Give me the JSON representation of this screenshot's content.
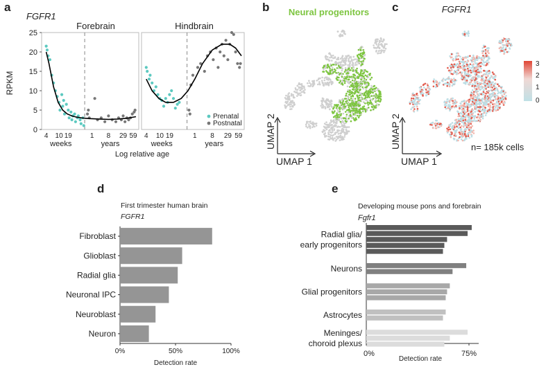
{
  "panels": {
    "a": {
      "letter": "a",
      "gene": "FGFR1",
      "ylabel": "RPKM",
      "xlabel": "Log relative age",
      "legend": [
        "Prenatal",
        "Postnatal"
      ],
      "colors": {
        "prenatal": "#5cc9c0",
        "postnatal": "#777777",
        "curve": "#000000"
      }
    },
    "b": {
      "letter": "b",
      "title": "Neural progenitors",
      "xlabel": "UMAP 1",
      "ylabel": "UMAP 2",
      "color": "#7dc540"
    },
    "c": {
      "letter": "c",
      "title": "FGFR1",
      "xlabel": "UMAP 1",
      "ylabel": "UMAP 2",
      "note": "n= 185k cells",
      "scale_ticks": [
        "3",
        "2",
        "1",
        "0"
      ]
    },
    "d": {
      "letter": "d",
      "title": "First trimester human brain",
      "gene": "FGFR1",
      "xlabel": "Detection rate"
    },
    "e": {
      "letter": "e",
      "title": "Developing mouse pons and forebrain",
      "gene": "Fgfr1",
      "xlabel": "Detection rate"
    }
  },
  "chart_data": [
    {
      "type": "scatter",
      "panel": "a-forebrain",
      "title": "Forebrain",
      "ylim": [
        0,
        25
      ],
      "yticks": [
        0,
        5,
        10,
        15,
        20,
        25
      ],
      "xtick_labels": [
        "4",
        "10",
        "19",
        "1",
        "8",
        "29",
        "59"
      ],
      "xgroup_labels": [
        "weeks",
        "years"
      ],
      "series": [
        {
          "name": "Prenatal",
          "x": [
            0.02,
            0.03,
            0.04,
            0.06,
            0.08,
            0.1,
            0.12,
            0.14,
            0.16,
            0.17,
            0.19,
            0.2,
            0.21,
            0.22,
            0.24,
            0.26,
            0.27,
            0.29,
            0.3,
            0.31,
            0.33,
            0.34,
            0.36,
            0.37,
            0.39,
            0.4,
            0.42,
            0.43
          ],
          "y": [
            21.5,
            20.5,
            19,
            18,
            14,
            12,
            10,
            8.5,
            7,
            5,
            9,
            6,
            7.5,
            4,
            6.5,
            5,
            3,
            4.5,
            2.5,
            3.5,
            4,
            2,
            3,
            3.5,
            2.5,
            1.5,
            3,
            1
          ]
        },
        {
          "name": "Postnatal",
          "x": [
            0.47,
            0.48,
            0.49,
            0.55,
            0.58,
            0.62,
            0.66,
            0.7,
            0.74,
            0.78,
            0.81,
            0.84,
            0.86,
            0.88,
            0.9,
            0.92,
            0.94,
            0.96,
            0.98,
            0.99
          ],
          "y": [
            4,
            5,
            3,
            8,
            2.5,
            3,
            2,
            3.5,
            2.5,
            2,
            3,
            2.5,
            3.5,
            2,
            3,
            2.5,
            3,
            4,
            4.5,
            5
          ]
        }
      ],
      "fit": {
        "x": [
          0.02,
          0.05,
          0.1,
          0.15,
          0.2,
          0.25,
          0.3,
          0.35,
          0.4,
          0.45,
          0.5,
          0.6,
          0.7,
          0.8,
          0.9,
          1.0
        ],
        "y": [
          20,
          17,
          11,
          7,
          5,
          4,
          3.5,
          3.2,
          3,
          2.9,
          2.8,
          2.7,
          2.6,
          2.7,
          2.9,
          3.3
        ]
      }
    },
    {
      "type": "scatter",
      "panel": "a-hindbrain",
      "title": "Hindbrain",
      "ylim": [
        0,
        25
      ],
      "xtick_labels": [
        "4",
        "10",
        "19",
        "1",
        "8",
        "29",
        "59"
      ],
      "xgroup_labels": [
        "weeks",
        "years"
      ],
      "series": [
        {
          "name": "Prenatal",
          "x": [
            0.02,
            0.03,
            0.05,
            0.06,
            0.08,
            0.1,
            0.12,
            0.14,
            0.16,
            0.18,
            0.2,
            0.22,
            0.24,
            0.26,
            0.28,
            0.3,
            0.32,
            0.34,
            0.36
          ],
          "y": [
            16,
            15,
            13,
            14,
            12,
            10,
            11,
            9,
            8,
            7.5,
            6,
            8,
            7,
            9,
            10,
            8,
            5.5,
            6.5,
            7
          ]
        },
        {
          "name": "Postnatal",
          "x": [
            0.46,
            0.47,
            0.48,
            0.5,
            0.55,
            0.58,
            0.62,
            0.65,
            0.68,
            0.71,
            0.74,
            0.76,
            0.78,
            0.8,
            0.82,
            0.84,
            0.86,
            0.88,
            0.9,
            0.92,
            0.94,
            0.96,
            0.98,
            0.99
          ],
          "y": [
            5,
            4,
            11.5,
            14,
            16,
            17,
            15,
            19,
            20,
            18,
            21,
            16,
            20,
            22,
            19,
            23,
            18,
            22,
            25,
            24.5,
            20,
            17,
            16,
            17
          ]
        }
      ],
      "fit": {
        "x": [
          0.02,
          0.08,
          0.15,
          0.22,
          0.3,
          0.38,
          0.45,
          0.52,
          0.6,
          0.7,
          0.8,
          0.88,
          0.94,
          1.0
        ],
        "y": [
          13,
          10,
          8,
          7,
          7,
          8,
          10,
          13,
          17,
          20.5,
          22,
          22,
          21,
          19
        ]
      }
    },
    {
      "type": "bar",
      "panel": "d",
      "orientation": "horizontal",
      "categories": [
        "Fibroblast",
        "Glioblast",
        "Radial glia",
        "Neuronal IPC",
        "Neuroblast",
        "Neuron"
      ],
      "values": [
        83,
        56,
        52,
        44,
        32,
        26
      ],
      "xlim": [
        0,
        100
      ],
      "xtick_labels": [
        "0%",
        "50%",
        "100%"
      ],
      "color": "#959595"
    },
    {
      "type": "bar",
      "panel": "e",
      "orientation": "horizontal",
      "xlim": [
        0,
        80
      ],
      "xtick_labels": [
        "0%",
        "75%"
      ],
      "groups": [
        {
          "label": "Radial glia/\nearly progenitors",
          "values": [
            77,
            74,
            59,
            57,
            56
          ],
          "color": "#5a5a5a"
        },
        {
          "label": "Neurons",
          "values": [
            73,
            63
          ],
          "color": "#808080"
        },
        {
          "label": "Glial progenitors",
          "values": [
            61,
            59,
            58
          ],
          "color": "#a8a8a8"
        },
        {
          "label": "Astrocytes",
          "values": [
            58,
            56
          ],
          "color": "#c0c0c0"
        },
        {
          "label": "Meninges/\nchoroid plexus",
          "values": [
            74,
            61,
            57
          ],
          "color": "#dcdcdc"
        }
      ]
    }
  ]
}
